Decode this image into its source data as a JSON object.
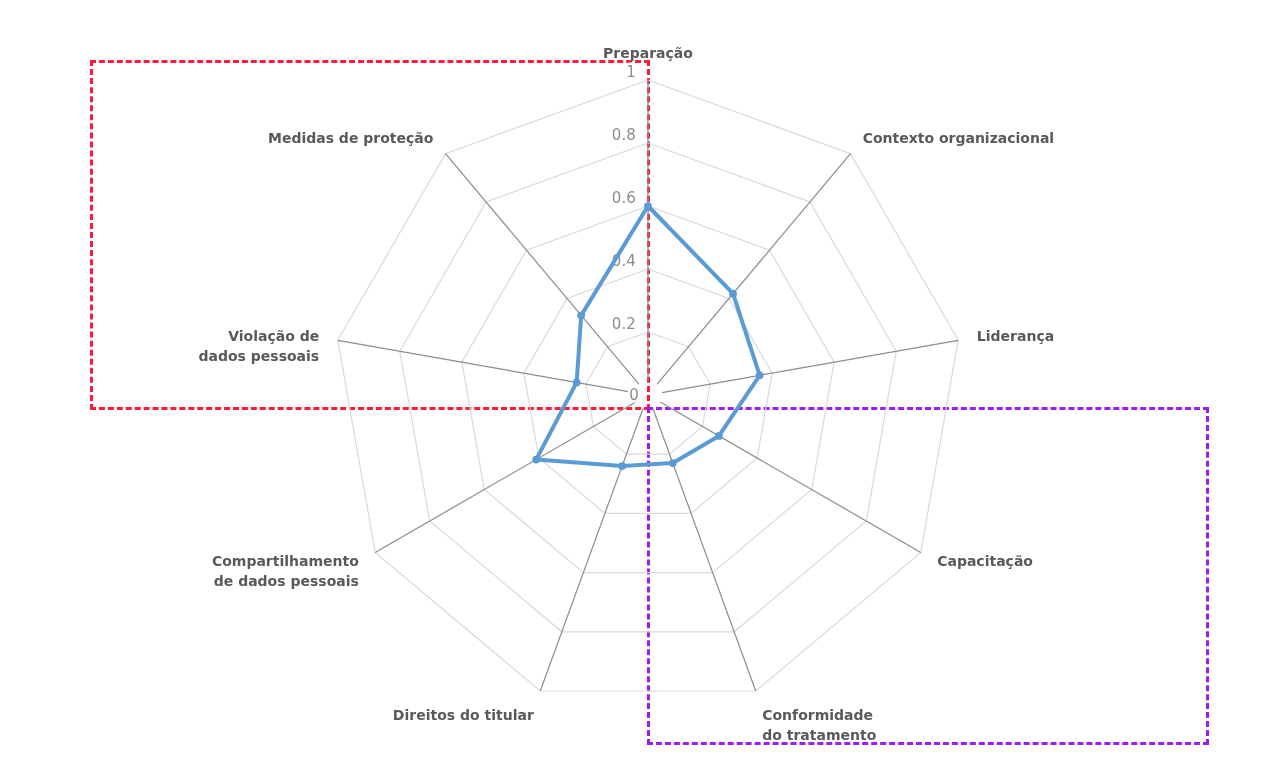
{
  "chart_data": {
    "type": "radar",
    "categories": [
      "Preparação",
      "Contexto organizacional",
      "Liderança",
      "Capacitação",
      "Conformidade do tratamento",
      "Direitos do titular",
      "Compartilhamento de dados pessoais",
      "Violação de dados pessoais",
      "Medidas de proteção"
    ],
    "series": [
      {
        "color": "#5b9bd5",
        "values": [
          0.6,
          0.42,
          0.36,
          0.26,
          0.23,
          0.24,
          0.41,
          0.23,
          0.33
        ]
      }
    ],
    "ylim": [
      0,
      1
    ],
    "yticks": [
      0,
      0.2,
      0.4,
      0.6,
      0.8,
      1
    ],
    "grid": true,
    "marker": "circle"
  }
}
